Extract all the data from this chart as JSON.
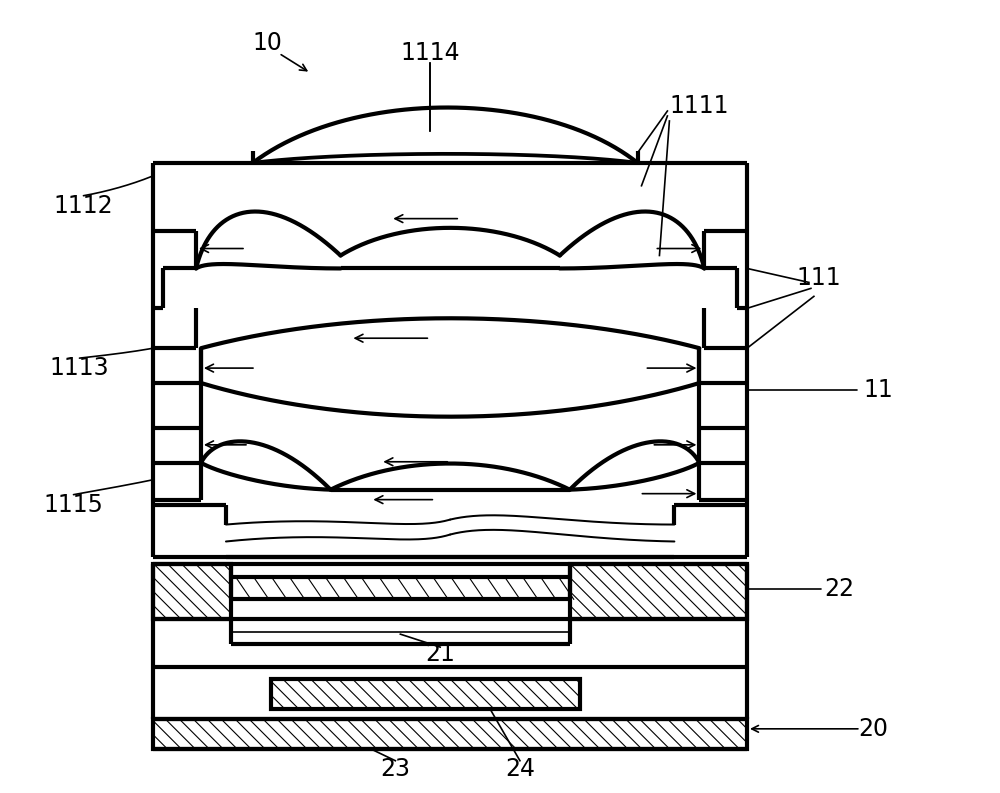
{
  "bg_color": "#ffffff",
  "thick_lw": 3.0,
  "thin_lw": 1.2,
  "fig_w": 10.0,
  "fig_h": 7.93
}
